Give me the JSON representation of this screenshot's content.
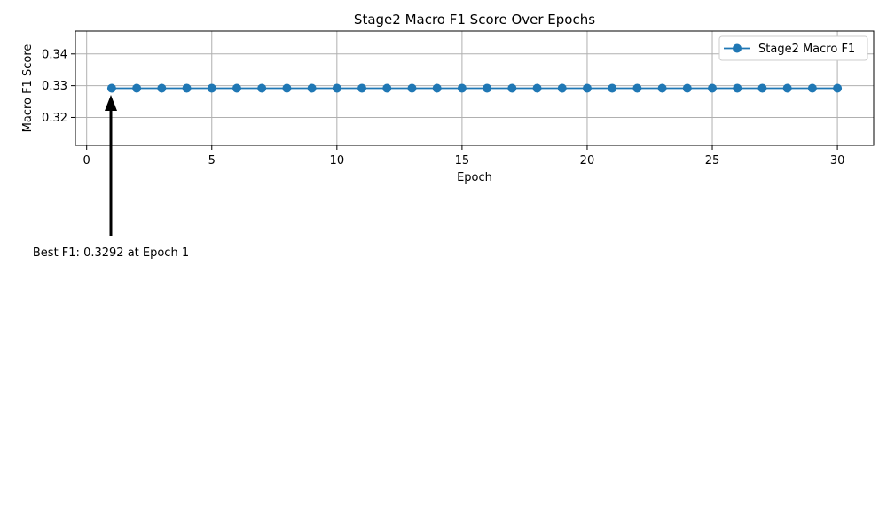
{
  "chart_data": {
    "type": "line",
    "title": "Stage2 Macro F1 Score Over Epochs",
    "xlabel": "Epoch",
    "ylabel": "Macro F1 Score",
    "xlim": [
      -0.45,
      31.45
    ],
    "ylim": [
      0.3112,
      0.3472
    ],
    "xticks": [
      0,
      5,
      10,
      15,
      20,
      25,
      30
    ],
    "xtick_labels": [
      "0",
      "5",
      "10",
      "15",
      "20",
      "25",
      "30"
    ],
    "yticks": [
      0.32,
      0.33,
      0.34
    ],
    "ytick_labels": [
      "0.32",
      "0.33",
      "0.34"
    ],
    "grid": true,
    "legend_position": "top-right",
    "series": [
      {
        "name": "Stage2 Macro F1",
        "color": "#1f77b4",
        "marker": "circle",
        "x": [
          1,
          2,
          3,
          4,
          5,
          6,
          7,
          8,
          9,
          10,
          11,
          12,
          13,
          14,
          15,
          16,
          17,
          18,
          19,
          20,
          21,
          22,
          23,
          24,
          25,
          26,
          27,
          28,
          29,
          30
        ],
        "y": [
          0.3292,
          0.3292,
          0.3292,
          0.3292,
          0.3292,
          0.3292,
          0.3292,
          0.3292,
          0.3292,
          0.3292,
          0.3292,
          0.3292,
          0.3292,
          0.3292,
          0.3292,
          0.3292,
          0.3292,
          0.3292,
          0.3292,
          0.3292,
          0.3292,
          0.3292,
          0.3292,
          0.3292,
          0.3292,
          0.3292,
          0.3292,
          0.3292,
          0.3292,
          0.3292
        ]
      }
    ],
    "annotation": {
      "text": "Best F1: 0.3292 at Epoch 1",
      "x": 1,
      "y": 0.3292
    }
  }
}
